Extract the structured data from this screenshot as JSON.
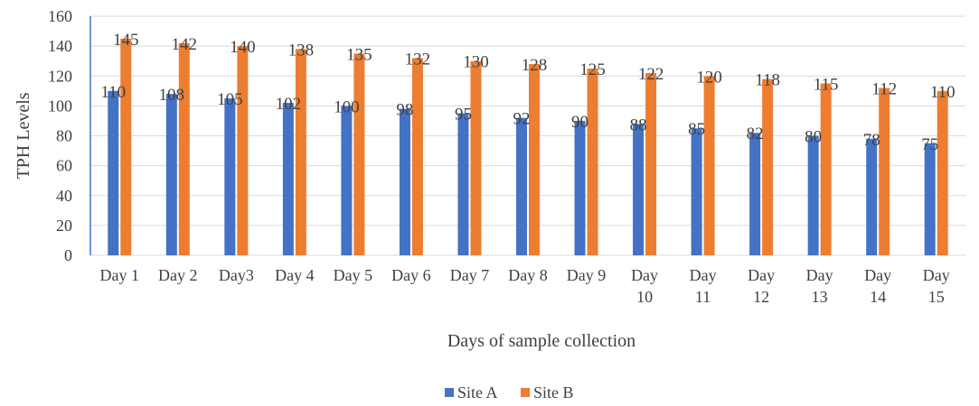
{
  "chart_data": {
    "type": "bar",
    "title": "",
    "xlabel": "Days of sample collection",
    "ylabel": "TPH Levels",
    "ylim": [
      0,
      160
    ],
    "yticks": [
      0,
      20,
      40,
      60,
      80,
      100,
      120,
      140,
      160
    ],
    "categories": [
      "Day 1",
      "Day 2",
      "Day3",
      "Day 4",
      "Day 5",
      "Day 6",
      "Day 7",
      "Day 8",
      "Day 9",
      "Day 10",
      "Day 11",
      "Day 12",
      "Day 13",
      "Day 14",
      "Day 15"
    ],
    "series": [
      {
        "name": "Site A",
        "color": "#4472C4",
        "values": [
          110,
          108,
          105,
          102,
          100,
          98,
          95,
          92,
          90,
          88,
          85,
          82,
          80,
          78,
          75
        ]
      },
      {
        "name": "Site B",
        "color": "#ED7D31",
        "values": [
          145,
          142,
          140,
          138,
          135,
          132,
          130,
          128,
          125,
          122,
          120,
          118,
          115,
          112,
          110
        ]
      }
    ],
    "grid": true,
    "legend_position": "bottom"
  }
}
